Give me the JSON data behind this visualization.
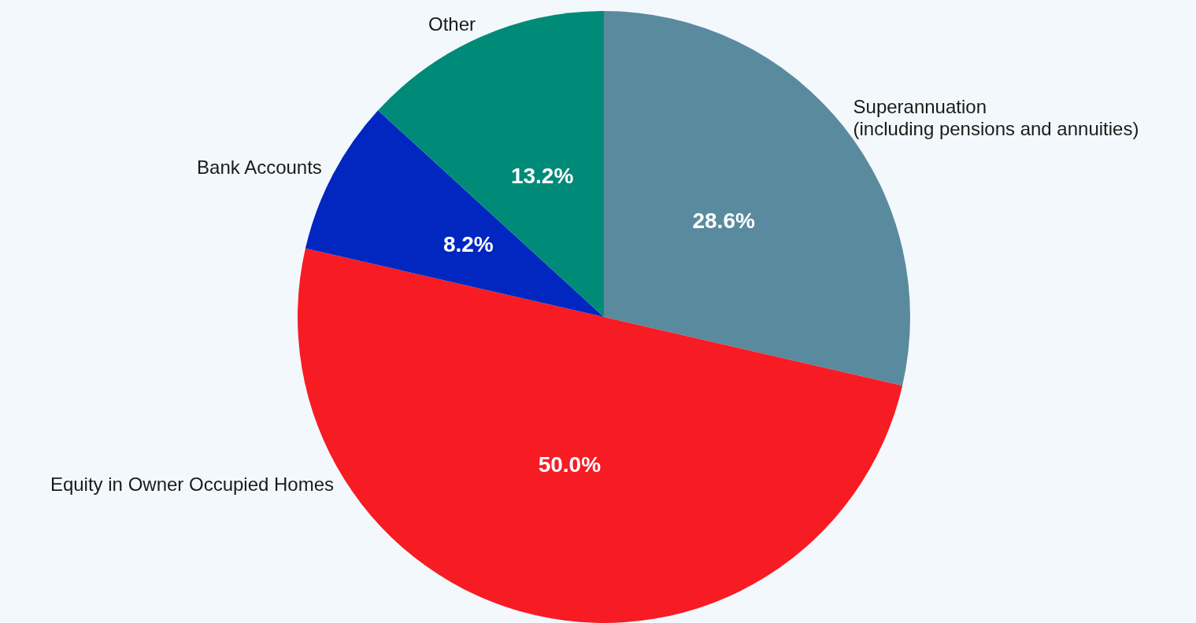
{
  "chart_data": {
    "type": "pie",
    "categories": [
      "Superannuation\n(including pensions and annuities)",
      "Equity in Owner Occupied Homes",
      "Bank Accounts",
      "Other"
    ],
    "values": [
      28.6,
      50.0,
      8.2,
      13.2
    ],
    "colors": [
      "#5a8a9e",
      "#f71b24",
      "#0226c0",
      "#008a78"
    ],
    "value_labels": [
      "28.6%",
      "50.0%",
      "8.2%",
      "13.2%"
    ],
    "legend": false
  }
}
